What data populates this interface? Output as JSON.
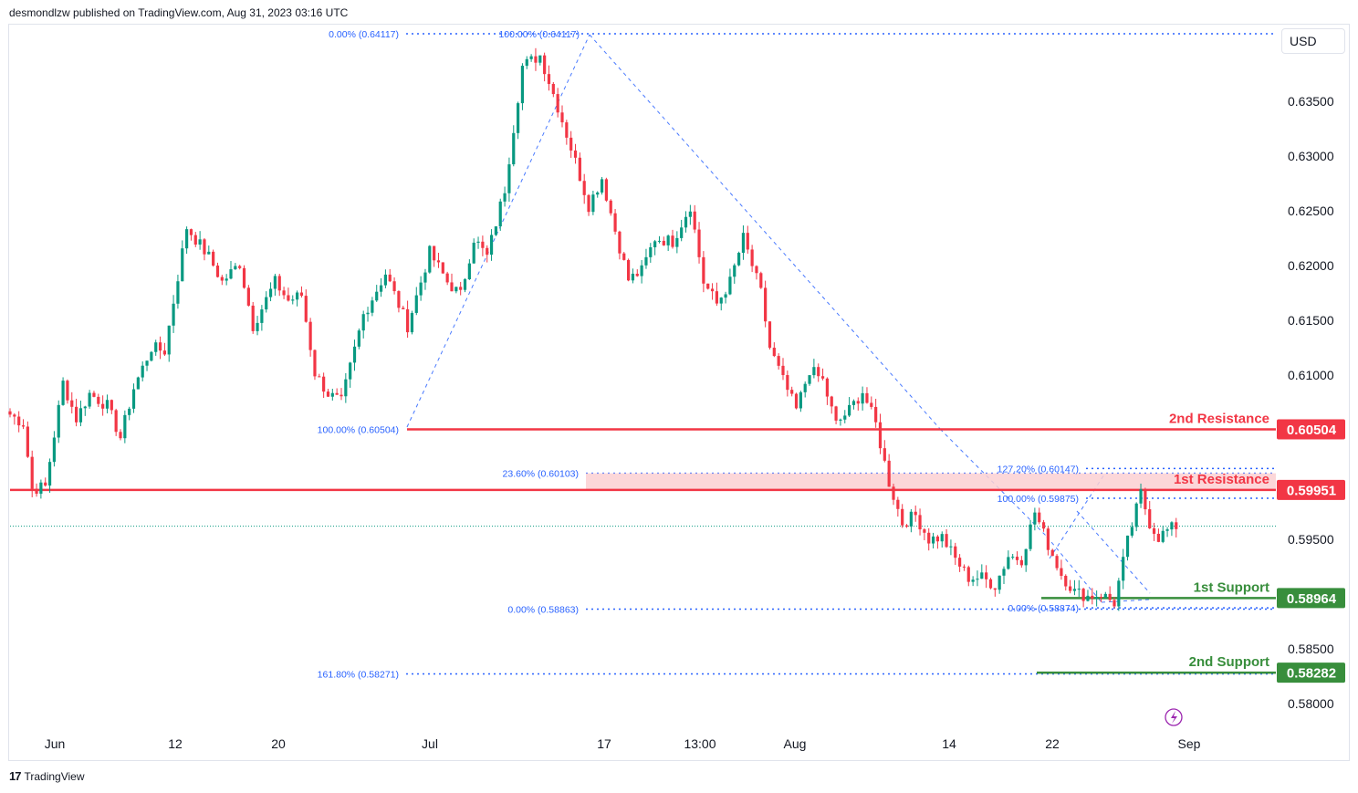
{
  "header": {
    "published_text": "desmondlzw published on TradingView.com, Aug 31, 2023 03:16 UTC"
  },
  "currency_button": "USD",
  "footer": {
    "brand": "TradingView",
    "logo_glyph": "17"
  },
  "colors": {
    "up": "#089981",
    "down": "#f23645",
    "resistance": "#f23645",
    "support": "#388e3c",
    "fib": "#2962ff",
    "zone": "#fcd0d2",
    "axis_text": "#131722",
    "lightning": "#9c27b0"
  },
  "chart_data": {
    "type": "candlestick",
    "title": "",
    "xlabel": "",
    "ylabel": "",
    "ylim": [
      0.5775,
      0.6425
    ],
    "x_tick_labels": [
      "Jun",
      "12",
      "20",
      "Jul",
      "17",
      "13:00",
      "Aug",
      "14",
      "22",
      "Sep"
    ],
    "y_tick_labels": [
      "0.63500",
      "0.63000",
      "0.62500",
      "0.62000",
      "0.61500",
      "0.61000",
      "0.59500",
      "0.58500",
      "0.58000"
    ],
    "y_tick_values": [
      0.635,
      0.63,
      0.625,
      0.62,
      0.615,
      0.61,
      0.595,
      0.585,
      0.58
    ],
    "series": [
      {
        "kind": "price_anchors",
        "x": [
          0,
          3,
          5,
          8,
          12,
          15,
          18,
          22,
          25,
          28,
          32,
          35,
          40,
          45,
          48,
          52,
          55,
          60,
          63,
          66,
          69,
          72,
          75,
          80,
          85,
          90,
          95,
          99,
          102,
          105,
          108,
          112,
          116,
          120,
          124,
          128,
          131,
          134,
          137,
          140,
          143,
          146,
          150,
          154,
          157,
          160,
          163,
          166,
          170,
          172,
          175,
          178
        ],
        "values": [
          0.6064,
          0.6056,
          0.5996,
          0.5998,
          0.6093,
          0.606,
          0.6083,
          0.6072,
          0.6043,
          0.6088,
          0.6125,
          0.6122,
          0.6235,
          0.6208,
          0.6185,
          0.6202,
          0.6145,
          0.6185,
          0.6168,
          0.6173,
          0.6102,
          0.6083,
          0.6075,
          0.6155,
          0.6193,
          0.6145,
          0.6212,
          0.6185,
          0.6173,
          0.6225,
          0.6208,
          0.627,
          0.6382,
          0.6392,
          0.6345,
          0.6295,
          0.6255,
          0.628,
          0.6232,
          0.6187,
          0.6195,
          0.6225,
          0.6222,
          0.6255,
          0.6185,
          0.6165,
          0.6185,
          0.6225,
          0.6175,
          0.6125,
          0.6095,
          0.6068
        ]
      },
      {
        "kind": "price_anchors_cont",
        "x": [
          181,
          184,
          187,
          190,
          193,
          196,
          199,
          202,
          205,
          208,
          211,
          214,
          217,
          220,
          223,
          226,
          229,
          232,
          235,
          238,
          241,
          244,
          247,
          250,
          253,
          256,
          258,
          260,
          262,
          264
        ],
        "values": [
          0.6105,
          0.6095,
          0.6055,
          0.6068,
          0.6085,
          0.6055,
          0.6002,
          0.5965,
          0.5972,
          0.595,
          0.5952,
          0.5932,
          0.5915,
          0.5915,
          0.5908,
          0.5935,
          0.5932,
          0.5975,
          0.5945,
          0.5918,
          0.5902,
          0.5898,
          0.59,
          0.5892,
          0.5948,
          0.5992,
          0.5965,
          0.5952,
          0.5958,
          0.5962
        ]
      }
    ],
    "levels": [
      {
        "name": "2nd Resistance",
        "value": 0.60504,
        "label": "0.60504",
        "color": "resistance"
      },
      {
        "name": "1st Resistance",
        "value": 0.59951,
        "label": "0.59951",
        "color": "resistance"
      },
      {
        "name": "1st Support",
        "value": 0.58964,
        "label": "0.58964",
        "color": "support"
      },
      {
        "name": "2nd Support",
        "value": 0.58282,
        "label": "0.58282",
        "color": "support"
      }
    ],
    "level_display": {
      "r2": "2nd Resistance",
      "r1": "1st Resistance",
      "s1": "1st Support",
      "s2": "2nd Support"
    },
    "resistance_zone": {
      "from": 0.59951,
      "to": 0.60103
    },
    "fib_labels": [
      {
        "text": "0.00% (0.64117)",
        "value": 0.64117
      },
      {
        "text": "100.00% (0.64117)",
        "value": 0.64117
      },
      {
        "text": "100.00% (0.60504)",
        "value": 0.60504
      },
      {
        "text": "23.60% (0.60103)",
        "value": 0.60103
      },
      {
        "text": "127.20% (0.60147)",
        "value": 0.60147
      },
      {
        "text": "100.00% (0.59875)",
        "value": 0.59875
      },
      {
        "text": "0.00% (0.58863)",
        "value": 0.58863
      },
      {
        "text": "0.00% (0.58874)",
        "value": 0.58874
      },
      {
        "text": "161.80% (0.58271)",
        "value": 0.58271
      }
    ],
    "last_price": 0.5962,
    "grid": false,
    "legend": "none"
  }
}
